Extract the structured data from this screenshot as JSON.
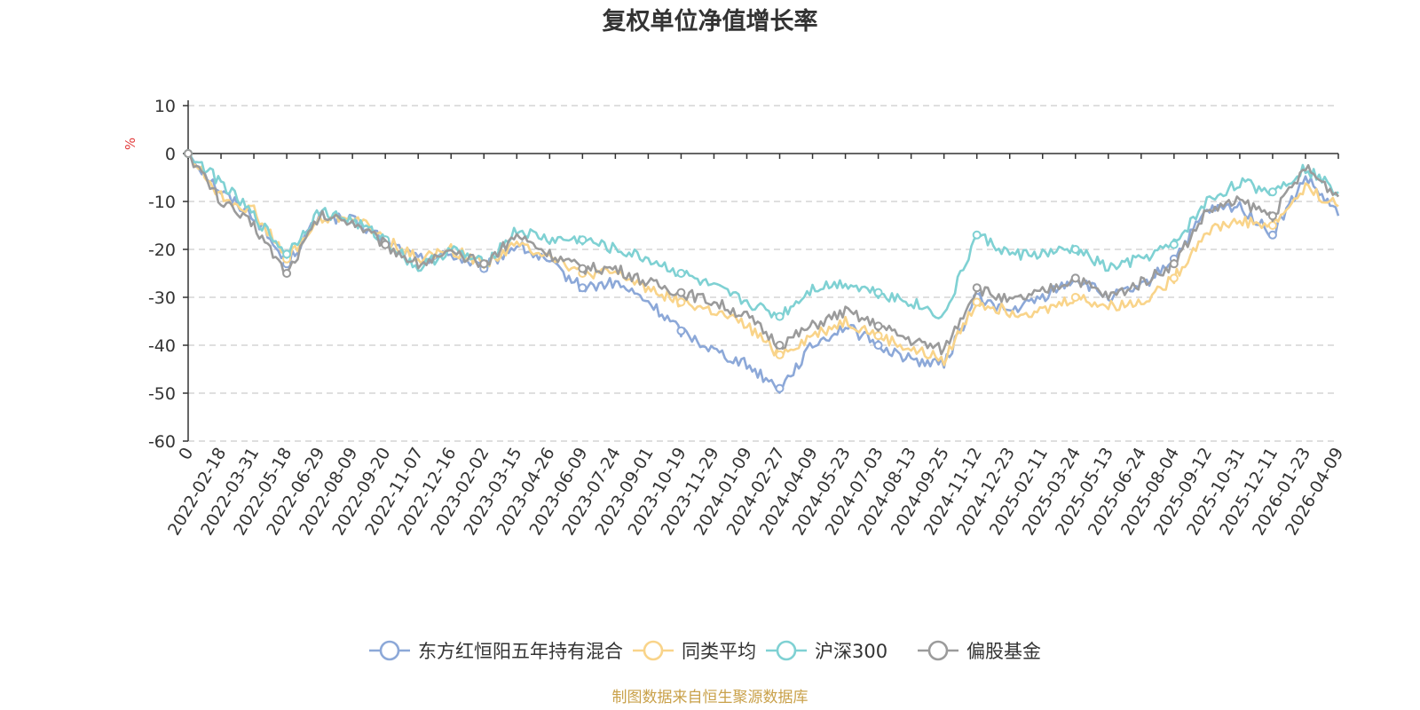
{
  "chart_data": {
    "type": "line",
    "title": "复权单位净值增长率",
    "ylabel": "%",
    "ylim": [
      -60,
      10
    ],
    "yticks": [
      10,
      0,
      -10,
      -20,
      -30,
      -40,
      -50,
      -60
    ],
    "categories": [
      "0",
      "2022-02-18",
      "2022-03-31",
      "2022-05-18",
      "2022-06-29",
      "2022-08-09",
      "2022-09-20",
      "2022-11-07",
      "2022-12-16",
      "2023-02-02",
      "2023-03-15",
      "2023-04-26",
      "2023-06-09",
      "2023-07-24",
      "2023-09-01",
      "2023-10-19",
      "2023-11-29",
      "2024-01-09",
      "2024-02-27",
      "2024-04-09",
      "2024-05-23",
      "2024-07-03",
      "2024-08-13",
      "2024-09-25",
      "2024-11-12",
      "2024-12-23",
      "2025-02-11",
      "2025-03-24",
      "2025-05-13",
      "2025-06-24",
      "2025-08-04",
      "2025-09-12",
      "2025-10-31",
      "2025-12-11",
      "2026-01-23",
      "2026-04-09"
    ],
    "series": [
      {
        "name": "东方红恒阳五年持有混合",
        "color": "#8ca8d8",
        "values": [
          0,
          -8,
          -13,
          -23,
          -13,
          -14,
          -18,
          -22,
          -21,
          -24,
          -19,
          -23,
          -28,
          -27,
          -31,
          -37,
          -41,
          -44,
          -49,
          -40,
          -36,
          -40,
          -43,
          -44,
          -30,
          -33,
          -30,
          -26,
          -30,
          -28,
          -22,
          -12,
          -11,
          -17,
          -5,
          -13
        ]
      },
      {
        "name": "同类平均",
        "color": "#f9d48a",
        "values": [
          0,
          -9,
          -12,
          -22,
          -14,
          -13,
          -18,
          -22,
          -20,
          -23,
          -19,
          -21,
          -25,
          -25,
          -28,
          -31,
          -33,
          -36,
          -42,
          -38,
          -35,
          -38,
          -41,
          -43,
          -31,
          -33,
          -33,
          -30,
          -32,
          -31,
          -26,
          -16,
          -14,
          -15,
          -7,
          -11
        ]
      },
      {
        "name": "沪深300",
        "color": "#7fd1d3",
        "values": [
          0,
          -6,
          -13,
          -21,
          -12,
          -14,
          -18,
          -24,
          -20,
          -23,
          -16,
          -18,
          -18,
          -20,
          -22,
          -25,
          -28,
          -31,
          -34,
          -28,
          -27,
          -29,
          -31,
          -34,
          -17,
          -21,
          -21,
          -20,
          -24,
          -22,
          -19,
          -10,
          -6,
          -8,
          -3,
          -8
        ]
      },
      {
        "name": "偏股基金",
        "color": "#9b9b9b",
        "values": [
          0,
          -10,
          -15,
          -25,
          -13,
          -14,
          -19,
          -23,
          -21,
          -23,
          -17,
          -21,
          -24,
          -24,
          -27,
          -29,
          -31,
          -34,
          -40,
          -36,
          -33,
          -36,
          -39,
          -41,
          -28,
          -31,
          -29,
          -26,
          -30,
          -27,
          -23,
          -12,
          -10,
          -13,
          -3,
          -9
        ]
      }
    ],
    "legend_position": "bottom"
  },
  "source_note": "制图数据来自恒生聚源数据库"
}
